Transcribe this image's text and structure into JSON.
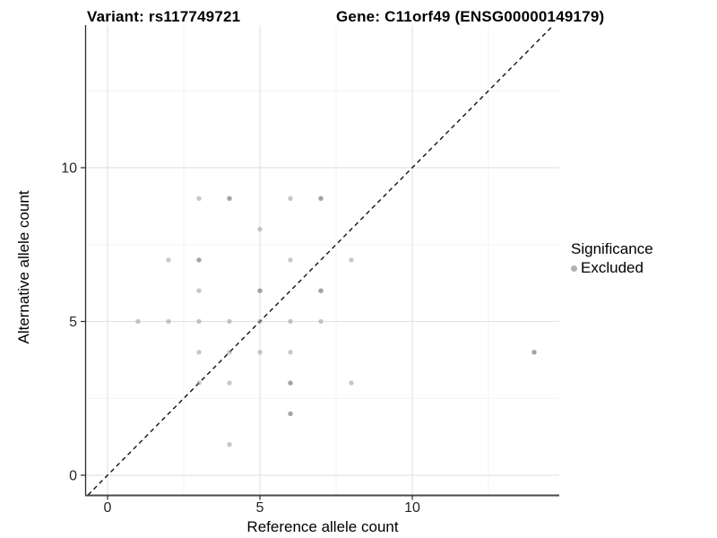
{
  "titles": {
    "variant": "Variant: rs117749721",
    "gene": "Gene: C11orf49 (ENSG00000149179)"
  },
  "axes": {
    "x_label": "Reference allele count",
    "y_label": "Alternative allele count"
  },
  "legend": {
    "title": "Significance",
    "items": [
      {
        "label": "Excluded",
        "marker_color": "#b3b3b3"
      }
    ]
  },
  "colors": {
    "point": "#8c8c8c",
    "grid_major": "#e4e4e4",
    "grid_minor": "#f3f3f3",
    "axis_line": "#4a4a4a",
    "identity_line": "#111111",
    "tick_label": "#262626"
  },
  "chart_data": {
    "type": "scatter",
    "title": "Variant: rs117749721 — Gene: C11orf49 (ENSG00000149179)",
    "xlabel": "Reference allele count",
    "ylabel": "Alternative allele count",
    "xlim": [
      -0.75,
      15.1
    ],
    "ylim": [
      -0.65,
      14.65
    ],
    "x_ticks": [
      0,
      5,
      10
    ],
    "y_ticks": [
      0,
      5,
      10
    ],
    "x_minor": [
      2.5,
      7.5,
      12.5
    ],
    "y_minor": [
      2.5,
      7.5,
      12.5
    ],
    "grid": true,
    "legend_position": "right",
    "identity_line": {
      "slope": 1,
      "intercept": 0,
      "style": "dashed"
    },
    "series": [
      {
        "name": "Excluded",
        "points": [
          {
            "x": 1,
            "y": 5,
            "n": 1
          },
          {
            "x": 2,
            "y": 5,
            "n": 1
          },
          {
            "x": 3,
            "y": 5,
            "n": 1
          },
          {
            "x": 4,
            "y": 5,
            "n": 1
          },
          {
            "x": 5,
            "y": 5,
            "n": 1
          },
          {
            "x": 6,
            "y": 5,
            "n": 1
          },
          {
            "x": 7,
            "y": 5,
            "n": 1
          },
          {
            "x": 2,
            "y": 7,
            "n": 1
          },
          {
            "x": 3,
            "y": 7,
            "n": 2
          },
          {
            "x": 6,
            "y": 7,
            "n": 1
          },
          {
            "x": 8,
            "y": 7,
            "n": 1
          },
          {
            "x": 3,
            "y": 9,
            "n": 1
          },
          {
            "x": 4,
            "y": 9,
            "n": 2
          },
          {
            "x": 6,
            "y": 9,
            "n": 1
          },
          {
            "x": 7,
            "y": 9,
            "n": 2
          },
          {
            "x": 5,
            "y": 8,
            "n": 1
          },
          {
            "x": 3,
            "y": 6,
            "n": 1
          },
          {
            "x": 5,
            "y": 6,
            "n": 2
          },
          {
            "x": 7,
            "y": 6,
            "n": 2
          },
          {
            "x": 3,
            "y": 4,
            "n": 1
          },
          {
            "x": 4,
            "y": 4,
            "n": 1
          },
          {
            "x": 5,
            "y": 4,
            "n": 1
          },
          {
            "x": 6,
            "y": 4,
            "n": 1
          },
          {
            "x": 14,
            "y": 4,
            "n": 2
          },
          {
            "x": 3,
            "y": 3,
            "n": 1
          },
          {
            "x": 4,
            "y": 3,
            "n": 1
          },
          {
            "x": 6,
            "y": 3,
            "n": 2
          },
          {
            "x": 8,
            "y": 3,
            "n": 1
          },
          {
            "x": 6,
            "y": 2,
            "n": 2
          },
          {
            "x": 4,
            "y": 1,
            "n": 1
          }
        ]
      }
    ]
  }
}
